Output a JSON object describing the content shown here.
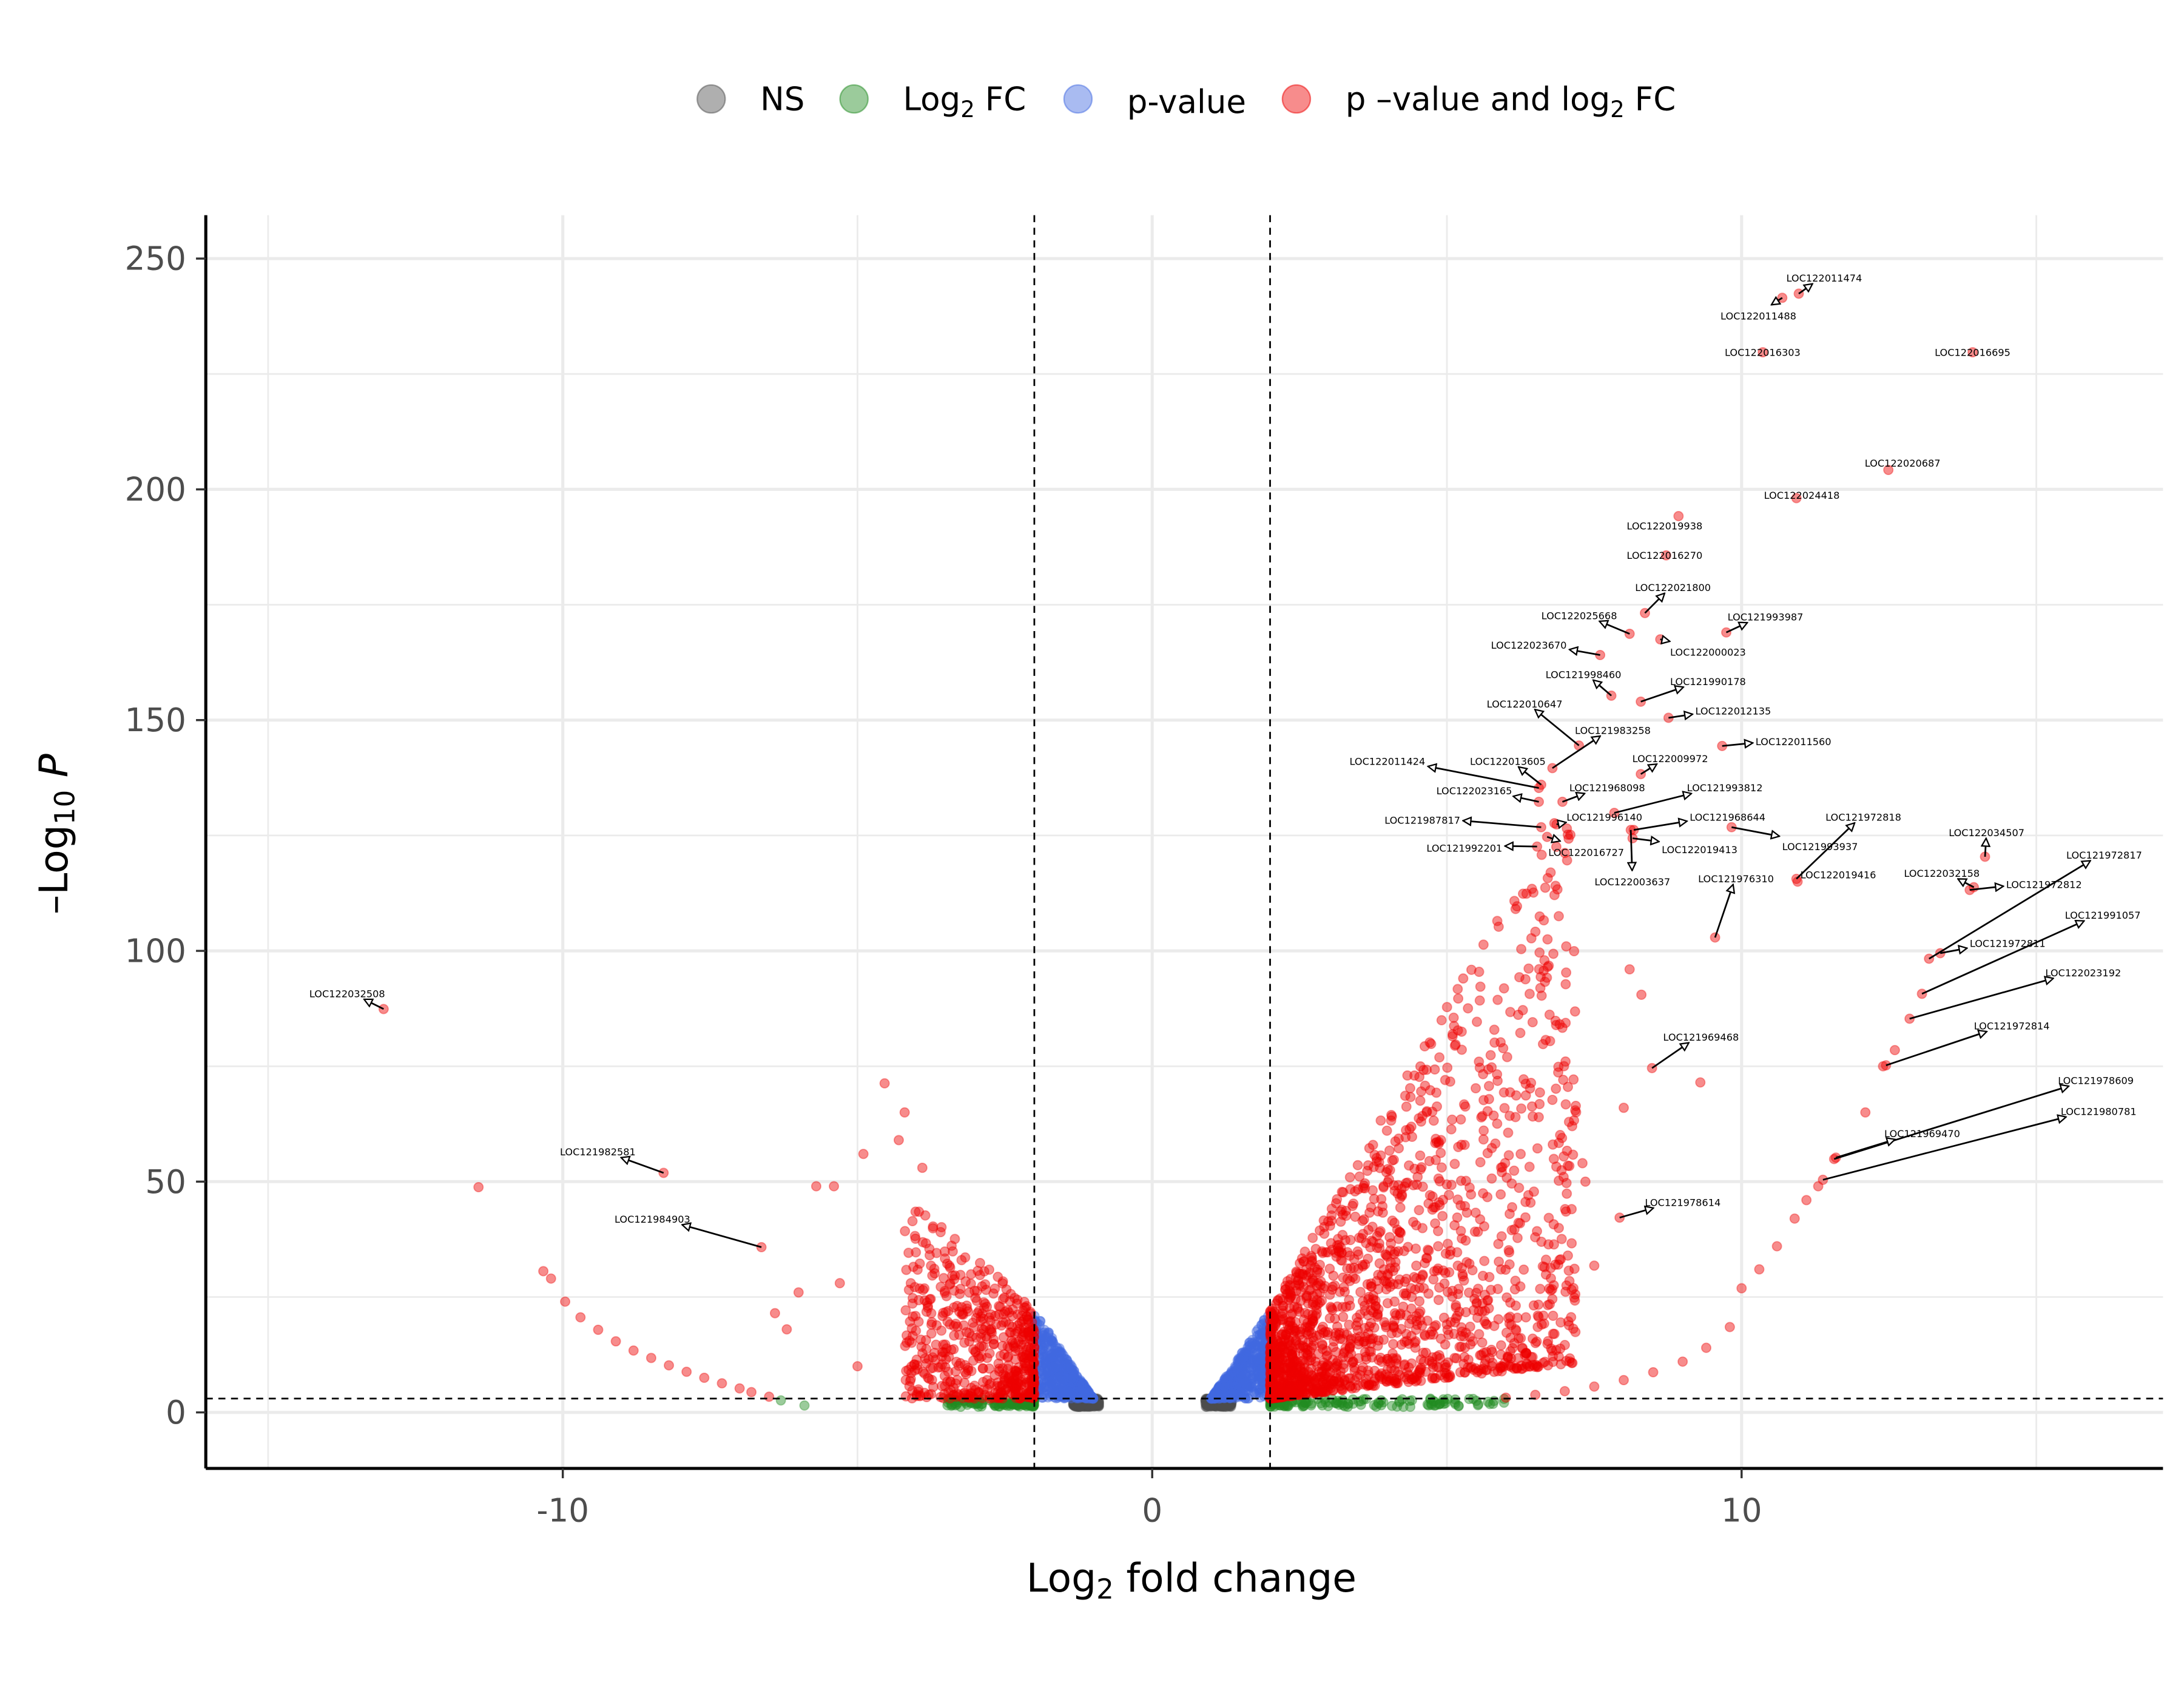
{
  "chart_data": {
    "type": "scatter",
    "subtype": "volcano",
    "xlabel": "Log2 fold change",
    "xlabel_parts": [
      "Log",
      "2",
      " fold change"
    ],
    "ylabel_parts": [
      "–Log",
      "10",
      " P"
    ],
    "xlim": [
      -16,
      17.1
    ],
    "ylim": [
      -12,
      259
    ],
    "x_ticks": [
      -10,
      0,
      10
    ],
    "y_ticks": [
      0,
      50,
      100,
      150,
      200,
      250
    ],
    "grid": true,
    "legend_position": "top",
    "thresholds": {
      "log2fc": [
        -2,
        2
      ],
      "neg_log10_p": 3
    },
    "legend": [
      {
        "key": "NS",
        "label_parts": [
          "NS"
        ],
        "color": "#4d4d4d"
      },
      {
        "key": "log2fc",
        "label_parts": [
          "Log",
          "2",
          " FC"
        ],
        "color": "#228b22"
      },
      {
        "key": "pvalue",
        "label_parts": [
          "p-value"
        ],
        "color": "#4169e1"
      },
      {
        "key": "both",
        "label_parts": [
          "p –value and log",
          "2",
          " FC"
        ],
        "color": "#ee0000"
      }
    ],
    "labeled_points": [
      {
        "gene": "LOC122011474",
        "x": 10.97,
        "y": 242.4
      },
      {
        "gene": "LOC122011488",
        "x": 10.69,
        "y": 241.5
      },
      {
        "gene": "LOC122016303",
        "x": 10.36,
        "y": 229.7
      },
      {
        "gene": "LOC122016695",
        "x": 13.92,
        "y": 229.7
      },
      {
        "gene": "LOC122020687",
        "x": 12.49,
        "y": 204.2
      },
      {
        "gene": "LOC122024418",
        "x": 10.93,
        "y": 198.1
      },
      {
        "gene": "LOC122019938",
        "x": 8.93,
        "y": 194.2
      },
      {
        "gene": "LOC122016270",
        "x": 8.72,
        "y": 185.7
      },
      {
        "gene": "LOC122021800",
        "x": 8.36,
        "y": 173.2
      },
      {
        "gene": "LOC122025668",
        "x": 8.1,
        "y": 168.7
      },
      {
        "gene": "LOC122000023",
        "x": 8.62,
        "y": 167.5
      },
      {
        "gene": "LOC121993987",
        "x": 9.74,
        "y": 169.0
      },
      {
        "gene": "LOC122023670",
        "x": 7.6,
        "y": 164.1
      },
      {
        "gene": "LOC121998460",
        "x": 7.79,
        "y": 155.3
      },
      {
        "gene": "LOC121990178",
        "x": 8.29,
        "y": 154.0
      },
      {
        "gene": "LOC122010647",
        "x": 7.24,
        "y": 144.5
      },
      {
        "gene": "LOC122012135",
        "x": 8.76,
        "y": 150.5
      },
      {
        "gene": "LOC121983258",
        "x": 6.79,
        "y": 139.6
      },
      {
        "gene": "LOC122011560",
        "x": 9.67,
        "y": 144.4
      },
      {
        "gene": "LOC122011424",
        "x": 6.56,
        "y": 135.3
      },
      {
        "gene": "LOC122013605",
        "x": 6.6,
        "y": 136.0
      },
      {
        "gene": "LOC122009972",
        "x": 8.29,
        "y": 138.3
      },
      {
        "gene": "LOC122023165",
        "x": 6.56,
        "y": 132.3
      },
      {
        "gene": "LOC121968098",
        "x": 6.96,
        "y": 132.3
      },
      {
        "gene": "LOC121993812",
        "x": 7.84,
        "y": 129.9
      },
      {
        "gene": "LOC121987817",
        "x": 6.6,
        "y": 126.8
      },
      {
        "gene": "LOC121996140",
        "x": 6.86,
        "y": 127.4
      },
      {
        "gene": "LOC121968644",
        "x": 8.17,
        "y": 126.2
      },
      {
        "gene": "LOC121972818",
        "x": 10.93,
        "y": 115.6
      },
      {
        "gene": "LOC121992201",
        "x": 6.53,
        "y": 122.6
      },
      {
        "gene": "LOC122016727",
        "x": 6.7,
        "y": 124.7
      },
      {
        "gene": "LOC122019413",
        "x": 8.15,
        "y": 124.4
      },
      {
        "gene": "LOC121993937",
        "x": 9.83,
        "y": 126.8
      },
      {
        "gene": "LOC122003637",
        "x": 8.12,
        "y": 126.2
      },
      {
        "gene": "LOC121976310",
        "x": 9.55,
        "y": 102.9
      },
      {
        "gene": "LOC122019416",
        "x": 10.95,
        "y": 115.0
      },
      {
        "gene": "LOC122034507",
        "x": 14.13,
        "y": 120.4
      },
      {
        "gene": "LOC121972817",
        "x": 13.18,
        "y": 98.3
      },
      {
        "gene": "LOC122032158",
        "x": 13.94,
        "y": 113.8
      },
      {
        "gene": "LOC121972812",
        "x": 13.87,
        "y": 113.2
      },
      {
        "gene": "LOC121991057",
        "x": 13.06,
        "y": 90.7
      },
      {
        "gene": "LOC121972811",
        "x": 13.37,
        "y": 99.5
      },
      {
        "gene": "LOC122023192",
        "x": 12.85,
        "y": 85.3
      },
      {
        "gene": "LOC121972814",
        "x": 12.45,
        "y": 75.2
      },
      {
        "gene": "LOC121978609",
        "x": 11.57,
        "y": 54.9
      },
      {
        "gene": "LOC121980781",
        "x": 11.38,
        "y": 50.4
      },
      {
        "gene": "LOC121969470",
        "x": 11.6,
        "y": 55.2
      },
      {
        "gene": "LOC121969468",
        "x": 8.48,
        "y": 74.6
      },
      {
        "gene": "LOC121978614",
        "x": 7.93,
        "y": 42.2
      },
      {
        "gene": "LOC122032508",
        "x": -13.04,
        "y": 87.4
      },
      {
        "gene": "LOC121982581",
        "x": -8.29,
        "y": 51.9
      },
      {
        "gene": "LOC121984903",
        "x": -6.63,
        "y": 35.8
      }
    ],
    "other_points": [
      [
        -11.43,
        48.8,
        "both"
      ],
      [
        -10.33,
        30.6,
        "both"
      ],
      [
        -10.2,
        29.0,
        "both"
      ],
      [
        -9.96,
        24.0,
        "both"
      ],
      [
        -9.7,
        20.6,
        "both"
      ],
      [
        -9.4,
        17.9,
        "both"
      ],
      [
        -9.1,
        15.4,
        "both"
      ],
      [
        -8.8,
        13.4,
        "both"
      ],
      [
        -8.5,
        11.8,
        "both"
      ],
      [
        -8.2,
        10.2,
        "both"
      ],
      [
        -7.9,
        8.8,
        "both"
      ],
      [
        -7.6,
        7.5,
        "both"
      ],
      [
        -7.3,
        6.3,
        "both"
      ],
      [
        -7.0,
        5.2,
        "both"
      ],
      [
        -6.8,
        4.4,
        "both"
      ],
      [
        -6.5,
        3.4,
        "both"
      ],
      [
        -6.3,
        2.6,
        "log2fc"
      ],
      [
        -5.9,
        1.5,
        "log2fc"
      ],
      [
        -6.4,
        21.5,
        "both"
      ],
      [
        -6.2,
        18.0,
        "both"
      ],
      [
        -6.0,
        26.0,
        "both"
      ],
      [
        -5.7,
        49.0,
        "both"
      ],
      [
        -5.4,
        49.0,
        "both"
      ],
      [
        -5.3,
        28.0,
        "both"
      ],
      [
        -4.9,
        56.0,
        "both"
      ],
      [
        -4.54,
        71.3,
        "both"
      ],
      [
        -4.2,
        65.0,
        "both"
      ],
      [
        -4.3,
        59.0,
        "both"
      ],
      [
        -3.9,
        53.0,
        "both"
      ],
      [
        -5.0,
        10.0,
        "both"
      ],
      [
        5.5,
        2.5,
        "log2fc"
      ],
      [
        6.0,
        3.2,
        "both"
      ],
      [
        6.5,
        3.8,
        "both"
      ],
      [
        7.0,
        4.6,
        "both"
      ],
      [
        7.5,
        5.6,
        "both"
      ],
      [
        8.0,
        7.0,
        "both"
      ],
      [
        8.5,
        8.7,
        "both"
      ],
      [
        9.0,
        11.0,
        "both"
      ],
      [
        9.4,
        14.0,
        "both"
      ],
      [
        9.8,
        18.5,
        "both"
      ],
      [
        10.0,
        26.9,
        "both"
      ],
      [
        10.3,
        31.0,
        "both"
      ],
      [
        10.6,
        36.0,
        "both"
      ],
      [
        10.9,
        42.0,
        "both"
      ],
      [
        11.1,
        46.0,
        "both"
      ],
      [
        11.3,
        49.0,
        "both"
      ],
      [
        12.1,
        65.0,
        "both"
      ],
      [
        12.6,
        78.5,
        "both"
      ],
      [
        12.4,
        75.0,
        "both"
      ],
      [
        9.3,
        71.5,
        "both"
      ],
      [
        8.0,
        66.0,
        "both"
      ],
      [
        8.1,
        96.0,
        "both"
      ],
      [
        8.3,
        90.5,
        "both"
      ],
      [
        7.5,
        31.8,
        "both"
      ],
      [
        7.3,
        54.0,
        "both"
      ],
      [
        7.35,
        50.0,
        "both"
      ]
    ]
  }
}
